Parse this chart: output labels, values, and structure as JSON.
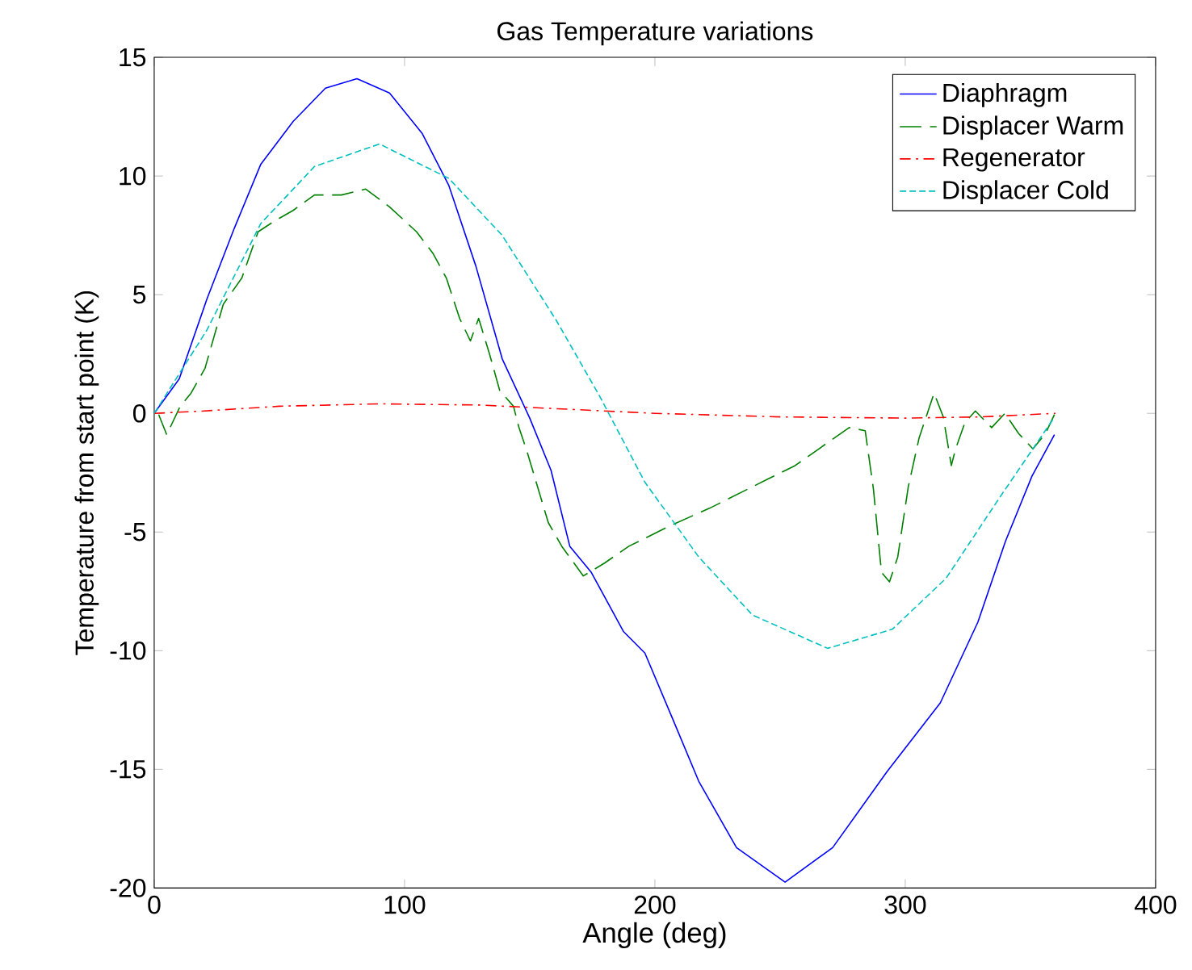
{
  "chart_data": {
    "type": "line",
    "title": "Gas Temperature variations",
    "xlabel": "Angle (deg)",
    "ylabel": "Temperature from start point (K)",
    "xlim": [
      0,
      400
    ],
    "xticks": [
      0,
      100,
      200,
      300,
      400
    ],
    "ylim": [
      -20,
      15
    ],
    "yticks": [
      -20,
      -15,
      -10,
      -5,
      0,
      5,
      10,
      15
    ],
    "legend": "top right",
    "grid": false,
    "marker": "none",
    "series": [
      {
        "name": "Diaphragm",
        "color": "#0000ff",
        "line_style": "solid",
        "x": [
          0,
          10,
          21,
          32,
          42.6,
          55.5,
          68.4,
          81,
          94,
          107,
          117.7,
          128.5,
          139,
          150,
          158.5,
          166,
          174.6,
          187.5,
          196,
          206.8,
          217.5,
          232.6,
          252,
          271,
          292.7,
          314,
          329,
          340,
          350.6,
          359.6
        ],
        "values": [
          0,
          1.45,
          4.8,
          7.8,
          10.5,
          12.3,
          13.7,
          14.1,
          13.5,
          11.8,
          9.6,
          6.2,
          2.3,
          -0.2,
          -2.4,
          -5.6,
          -6.7,
          -9.2,
          -10.1,
          -12.8,
          -15.5,
          -18.3,
          -19.75,
          -18.3,
          -15.1,
          -12.2,
          -8.8,
          -5.4,
          -2.65,
          -0.9
        ]
      },
      {
        "name": "Displacer Warm",
        "color": "#008000",
        "line_style": "dashed",
        "x": [
          1.8,
          5,
          10.4,
          14.7,
          20.3,
          27.6,
          35,
          41.5,
          48,
          55.5,
          64,
          70.5,
          74.8,
          84.5,
          94,
          104.8,
          111.3,
          116.7,
          122,
          126.3,
          129.6,
          133.8,
          138,
          143.5,
          145.7,
          148.9,
          157.4,
          162.8,
          171.4,
          180,
          189.6,
          206.8,
          221.8,
          245.5,
          256,
          277.6,
          284,
          287.3,
          290.5,
          293.7,
          297,
          301.2,
          305.5,
          311.5,
          315.2,
          318.4,
          320.1,
          323.8,
          328,
          334.5,
          339.8,
          345.3,
          351,
          356,
          359.6
        ],
        "values": [
          -0.05,
          -0.9,
          0.3,
          0.85,
          1.9,
          4.6,
          5.7,
          7.65,
          8.1,
          8.55,
          9.2,
          9.2,
          9.2,
          9.45,
          8.7,
          7.65,
          6.75,
          5.7,
          4.0,
          3.05,
          4.0,
          2.55,
          0.97,
          0.3,
          -0.6,
          -1.6,
          -4.6,
          -5.6,
          -6.85,
          -6.3,
          -5.6,
          -4.7,
          -4.0,
          -2.75,
          -2.2,
          -0.6,
          -0.73,
          -3.2,
          -6.7,
          -7.1,
          -6.05,
          -3.1,
          -1.05,
          0.85,
          -0.15,
          -2.2,
          -1.5,
          -0.4,
          0.1,
          -0.6,
          0.0,
          -0.85,
          -1.5,
          -0.85,
          -0.05
        ]
      },
      {
        "name": "Regenerator",
        "color": "#ff0000",
        "line_style": "dashdot",
        "x": [
          0,
          20,
          50,
          90,
          130,
          170,
          200,
          250,
          300,
          330,
          360
        ],
        "values": [
          0,
          0.1,
          0.3,
          0.4,
          0.35,
          0.15,
          0,
          -0.15,
          -0.2,
          -0.15,
          0
        ]
      },
      {
        "name": "Displacer Cold",
        "color": "#00bfbf",
        "line_style": "dashed",
        "x": [
          0,
          21,
          42.6,
          64,
          90,
          117.7,
          139,
          160.7,
          177.8,
          196,
          217.5,
          239,
          269,
          294.8,
          316.3,
          337.7,
          359.6
        ],
        "values": [
          0,
          3.5,
          8.0,
          10.4,
          11.35,
          9.9,
          7.5,
          3.9,
          0.75,
          -2.9,
          -6.05,
          -8.5,
          -9.9,
          -9.1,
          -6.95,
          -3.55,
          -0.16
        ]
      }
    ]
  }
}
